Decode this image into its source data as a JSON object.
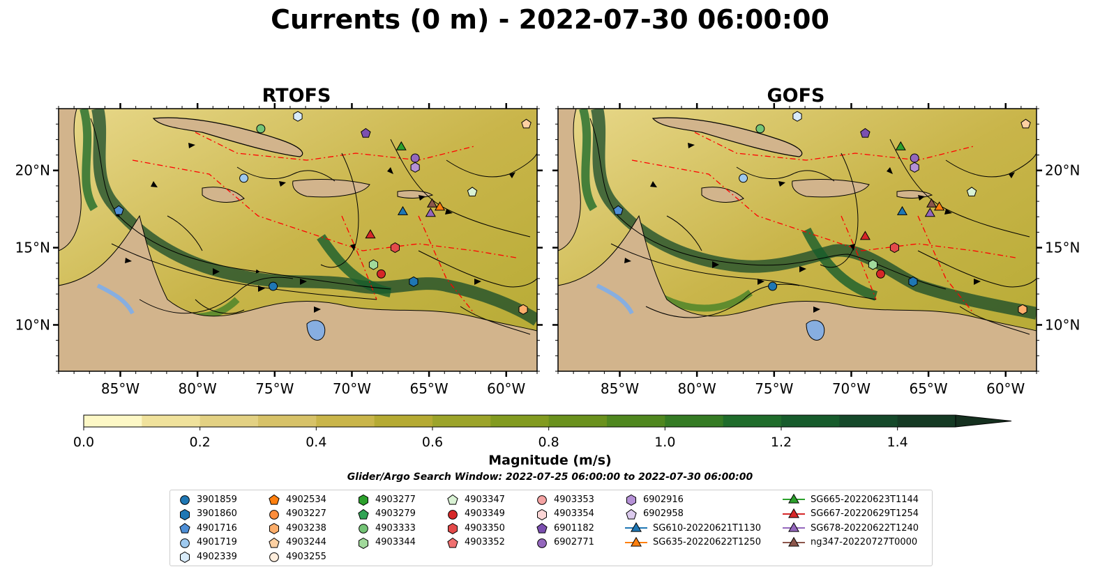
{
  "title": "Currents (0 m) - 2022-07-30 06:00:00",
  "panels": [
    {
      "title": "RTOFS"
    },
    {
      "title": "GOFS"
    }
  ],
  "axes": {
    "lon_ticks": [
      "85°W",
      "80°W",
      "75°W",
      "70°W",
      "65°W",
      "60°W"
    ],
    "lat_ticks": [
      "20°N",
      "15°N",
      "10°N"
    ],
    "lon_range": [
      -89,
      -58
    ],
    "lat_range": [
      7,
      24
    ]
  },
  "colorbar": {
    "label": "Magnitude (m/s)",
    "ticks": [
      "0.0",
      "0.2",
      "0.4",
      "0.6",
      "0.8",
      "1.0",
      "1.2",
      "1.4"
    ],
    "range": [
      0,
      1.5
    ],
    "extend": "max",
    "colormap": "speed",
    "colors": [
      "#fdf8c6",
      "#f0e29c",
      "#e3d183",
      "#d7c268",
      "#c9b54a",
      "#b5aa33",
      "#9ca42a",
      "#829b20",
      "#6a911d",
      "#4f871f",
      "#357b24",
      "#1f6c2b",
      "#175c2c",
      "#15492a",
      "#153a24",
      "#15301f"
    ]
  },
  "search_window": "Glider/Argo Search Window: 2022-07-25 06:00:00 to 2022-07-30 06:00:00",
  "colors": {
    "land": "#d2b48c",
    "lakes": "#87aee0",
    "eez_lines": "#ff0000",
    "borders": "#000000"
  },
  "legend": {
    "columns": [
      [
        {
          "label": "3901859",
          "marker": "circle",
          "color": "#1f77b4"
        },
        {
          "label": "3901860",
          "marker": "hexagon",
          "color": "#1f77b4"
        },
        {
          "label": "4901716",
          "marker": "pentagon",
          "color": "#4f8fd6"
        },
        {
          "label": "4901719",
          "marker": "circle",
          "color": "#9ec9ef"
        },
        {
          "label": "4902339",
          "marker": "hexagon",
          "color": "#d8ebfa"
        }
      ],
      [
        {
          "label": "4902534",
          "marker": "pentagon",
          "color": "#ff7f0e"
        },
        {
          "label": "4903227",
          "marker": "circle",
          "color": "#fd8d3c"
        },
        {
          "label": "4903238",
          "marker": "hexagon",
          "color": "#fdae6b"
        },
        {
          "label": "4903244",
          "marker": "pentagon",
          "color": "#fdd0a2"
        },
        {
          "label": "4903255",
          "marker": "circle",
          "color": "#feeddc"
        }
      ],
      [
        {
          "label": "4903277",
          "marker": "hexagon",
          "color": "#2ca02c"
        },
        {
          "label": "4903279",
          "marker": "pentagon",
          "color": "#31a354"
        },
        {
          "label": "4903333",
          "marker": "circle",
          "color": "#74c476"
        },
        {
          "label": "4903344",
          "marker": "hexagon",
          "color": "#a1d99b"
        }
      ],
      [
        {
          "label": "4903347",
          "marker": "pentagon",
          "color": "#d9f2d4"
        },
        {
          "label": "4903349",
          "marker": "circle",
          "color": "#d62728"
        },
        {
          "label": "4903350",
          "marker": "hexagon",
          "color": "#e34a4a"
        },
        {
          "label": "4903352",
          "marker": "pentagon",
          "color": "#f07070"
        }
      ],
      [
        {
          "label": "4903353",
          "marker": "circle",
          "color": "#f4a3a3"
        },
        {
          "label": "4903354",
          "marker": "hexagon",
          "color": "#fcd6d6"
        },
        {
          "label": "6901182",
          "marker": "pentagon",
          "color": "#7b4fb0"
        },
        {
          "label": "6902771",
          "marker": "circle",
          "color": "#9467bd"
        }
      ],
      [
        {
          "label": "6902916",
          "marker": "hexagon",
          "color": "#b591d6"
        },
        {
          "label": "6902958",
          "marker": "pentagon",
          "color": "#dccbee"
        },
        {
          "label": "SG610-20220621T1130",
          "marker": "triangle",
          "color": "#1f77b4",
          "line": true
        },
        {
          "label": "SG635-20220622T1250",
          "marker": "triangle",
          "color": "#ff7f0e",
          "line": true
        }
      ],
      [
        {
          "label": "SG665-20220623T1144",
          "marker": "triangle",
          "color": "#2ca02c",
          "line": true
        },
        {
          "label": "SG667-20220629T1254",
          "marker": "triangle",
          "color": "#d62728",
          "line": true
        },
        {
          "label": "SG678-20220622T1240",
          "marker": "triangle",
          "color": "#9467bd",
          "line": true
        },
        {
          "label": "ng347-20220727T0000",
          "marker": "triangle",
          "color": "#8c564b",
          "line": true
        }
      ]
    ]
  },
  "platforms": {
    "RTOFS": [
      {
        "id": "3901859",
        "lon": -75.1,
        "lat": 12.5
      },
      {
        "id": "3901860",
        "lon": -66.0,
        "lat": 12.8
      },
      {
        "id": "4901716",
        "lon": -85.1,
        "lat": 17.4
      },
      {
        "id": "4901719",
        "lon": -77.0,
        "lat": 19.5
      },
      {
        "id": "4902339",
        "lon": -73.5,
        "lat": 23.5
      },
      {
        "id": "4903238",
        "lon": -58.9,
        "lat": 11.0
      },
      {
        "id": "4903244",
        "lon": -58.7,
        "lat": 23.0
      },
      {
        "id": "4903333",
        "lon": -75.9,
        "lat": 22.7
      },
      {
        "id": "4903344",
        "lon": -68.6,
        "lat": 13.9
      },
      {
        "id": "4903347",
        "lon": -62.2,
        "lat": 18.6
      },
      {
        "id": "4903349",
        "lon": -68.1,
        "lat": 13.3
      },
      {
        "id": "4903350",
        "lon": -67.2,
        "lat": 15.0
      },
      {
        "id": "6901182",
        "lon": -69.1,
        "lat": 22.4
      },
      {
        "id": "6902771",
        "lon": -65.9,
        "lat": 20.8
      },
      {
        "id": "6902916",
        "lon": -65.9,
        "lat": 20.2
      },
      {
        "id": "SG610-20220621T1130",
        "lon": -66.7,
        "lat": 17.3
      },
      {
        "id": "SG635-20220622T1250",
        "lon": -64.3,
        "lat": 17.6
      },
      {
        "id": "SG665-20220623T1144",
        "lon": -66.8,
        "lat": 21.5
      },
      {
        "id": "SG667-20220629T1254",
        "lon": -68.8,
        "lat": 15.8
      },
      {
        "id": "SG678-20220622T1240",
        "lon": -64.9,
        "lat": 17.2
      },
      {
        "id": "ng347-20220727T0000",
        "lon": -64.8,
        "lat": 17.8
      }
    ],
    "GOFS": [
      {
        "id": "3901859",
        "lon": -75.1,
        "lat": 12.5
      },
      {
        "id": "3901860",
        "lon": -66.0,
        "lat": 12.8
      },
      {
        "id": "4901716",
        "lon": -85.1,
        "lat": 17.4
      },
      {
        "id": "4901719",
        "lon": -77.0,
        "lat": 19.5
      },
      {
        "id": "4902339",
        "lon": -73.5,
        "lat": 23.5
      },
      {
        "id": "4903238",
        "lon": -58.9,
        "lat": 11.0
      },
      {
        "id": "4903244",
        "lon": -58.7,
        "lat": 23.0
      },
      {
        "id": "4903333",
        "lon": -75.9,
        "lat": 22.7
      },
      {
        "id": "4903344",
        "lon": -68.6,
        "lat": 13.9
      },
      {
        "id": "4903347",
        "lon": -62.2,
        "lat": 18.6
      },
      {
        "id": "4903349",
        "lon": -68.1,
        "lat": 13.3
      },
      {
        "id": "4903350",
        "lon": -67.2,
        "lat": 15.0
      },
      {
        "id": "6901182",
        "lon": -69.1,
        "lat": 22.4
      },
      {
        "id": "6902771",
        "lon": -65.9,
        "lat": 20.8
      },
      {
        "id": "6902916",
        "lon": -65.9,
        "lat": 20.2
      },
      {
        "id": "SG610-20220621T1130",
        "lon": -66.7,
        "lat": 17.3
      },
      {
        "id": "SG635-20220622T1250",
        "lon": -64.3,
        "lat": 17.6
      },
      {
        "id": "SG665-20220623T1144",
        "lon": -66.8,
        "lat": 21.5
      },
      {
        "id": "SG667-20220629T1254",
        "lon": -69.1,
        "lat": 15.7
      },
      {
        "id": "SG678-20220622T1240",
        "lon": -64.9,
        "lat": 17.2
      },
      {
        "id": "ng347-20220727T0000",
        "lon": -64.8,
        "lat": 17.8
      }
    ]
  }
}
